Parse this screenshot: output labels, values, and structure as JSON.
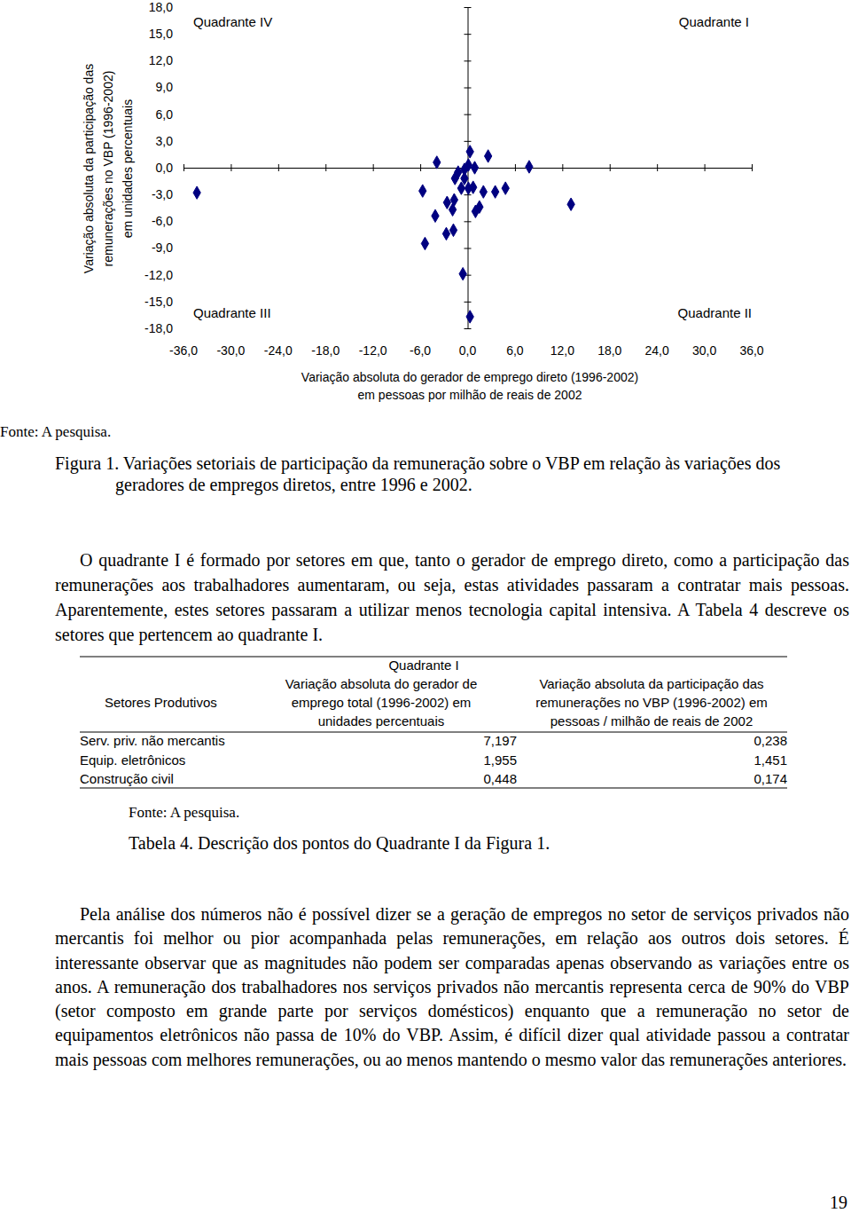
{
  "chart_data": {
    "type": "scatter",
    "x_label": [
      "Variação absoluta do gerador de emprego direto (1996-2002)",
      "em pessoas por milhão de reais de 2002"
    ],
    "y_label": [
      "Variação absoluta da participação das",
      "remunerações no VBP (1996-2002)",
      "em unidades percentuais"
    ],
    "annotations": [
      "Quadrante IV",
      "Quadrante I",
      "Quadrante III",
      "Quadrante II"
    ],
    "source": "Fonte: A pesquisa.",
    "x": [
      -34.3,
      -3.9,
      0.3,
      2.6,
      7.8,
      13.1,
      -5.7,
      -1.2,
      -0.4,
      0.1,
      0.9,
      -1.6,
      -0.8,
      0.1,
      0.7,
      2.0,
      3.5,
      4.8,
      -2.6,
      -1.7,
      -1.9,
      1.0,
      1.5,
      -4.1,
      -2.7,
      -1.8,
      -5.4,
      -0.6,
      0.3,
      -0.4
    ],
    "values": [
      -2.8,
      0.6,
      1.8,
      1.3,
      0.1,
      -4.1,
      -2.6,
      -0.5,
      -0.2,
      0.3,
      0.0,
      -1.2,
      -2.3,
      -2.3,
      -2.2,
      -2.7,
      -2.7,
      -2.3,
      -3.9,
      -3.6,
      -4.7,
      -4.9,
      -4.4,
      -5.4,
      -7.4,
      -7.0,
      -8.5,
      -11.9,
      -16.7,
      -1.2
    ],
    "color": "#000080",
    "marker": "diamond",
    "xlim": [
      -36,
      36
    ],
    "ylim": [
      -18,
      18
    ],
    "xticks": [
      {
        "value": -36,
        "label": "-36,0"
      },
      {
        "value": -30,
        "label": "-30,0"
      },
      {
        "value": -24,
        "label": "-24,0"
      },
      {
        "value": -18,
        "label": "-18,0"
      },
      {
        "value": -12,
        "label": "-12,0"
      },
      {
        "value": -6,
        "label": "-6,0"
      },
      {
        "value": 0,
        "label": "0,0"
      },
      {
        "value": 6,
        "label": "6,0"
      },
      {
        "value": 12,
        "label": "12,0"
      },
      {
        "value": 18,
        "label": "18,0"
      },
      {
        "value": 24,
        "label": "24,0"
      },
      {
        "value": 30,
        "label": "30,0"
      },
      {
        "value": 36,
        "label": "36,0"
      }
    ],
    "yticks": [
      {
        "value": 18,
        "label": "18,0"
      },
      {
        "value": 15,
        "label": "15,0"
      },
      {
        "value": 12,
        "label": "12,0"
      },
      {
        "value": 9,
        "label": "9,0"
      },
      {
        "value": 6,
        "label": "6,0"
      },
      {
        "value": 3,
        "label": "3,0"
      },
      {
        "value": 0,
        "label": "0,0"
      },
      {
        "value": -3,
        "label": "-3,0"
      },
      {
        "value": -6,
        "label": "-6,0"
      },
      {
        "value": -9,
        "label": "-9,0"
      },
      {
        "value": -12,
        "label": "-12,0"
      },
      {
        "value": -15,
        "label": "-15,0"
      },
      {
        "value": -18,
        "label": "-18,0"
      }
    ]
  },
  "caption": "Figura 1. Variações setoriais de participação da remuneração sobre o VBP em relação às variações dos geradores de empregos diretos, entre 1996 e 2002.",
  "paragraph1": "O quadrante I é formado por setores em que, tanto o gerador de emprego direto, como a participação das remunerações aos trabalhadores aumentaram, ou seja, estas atividades passaram a contratar mais pessoas. Aparentemente, estes setores passaram a utilizar menos tecnologia capital intensiva. A Tabela 4 descreve os setores que pertencem ao quadrante I.",
  "table": {
    "title": "Quadrante I",
    "columns": [
      [
        "Setores Produtivos"
      ],
      [
        "Variação absoluta do gerador de",
        "emprego total (1996-2002) em",
        "unidades percentuais"
      ],
      [
        "Variação absoluta da participação das",
        "remunerações no VBP (1996-2002) em",
        "pessoas / milhão de reais de 2002"
      ]
    ],
    "rows": [
      [
        "Serv. priv. não mercantis",
        "7,197",
        "0,238"
      ],
      [
        "Equip. eletrônicos",
        "1,955",
        "1,451"
      ],
      [
        "Construção civil",
        "0,448",
        "0,174"
      ]
    ],
    "source": "Fonte: A pesquisa.",
    "caption": "Tabela 4. Descrição dos pontos do Quadrante I da Figura 1."
  },
  "paragraph2": "Pela análise dos números não é possível dizer se a geração de empregos no setor de serviços privados não mercantis foi melhor ou pior acompanhada pelas remunerações, em relação aos outros dois setores. É interessante observar que as magnitudes não podem ser comparadas apenas observando as variações entre os anos. A remuneração dos trabalhadores nos serviços privados não mercantis representa cerca de 90% do VBP (setor composto em grande parte por serviços domésticos) enquanto que a remuneração no setor de equipamentos eletrônicos não passa de 10% do VBP. Assim, é difícil dizer qual atividade passou a contratar mais pessoas com melhores remunerações, ou ao menos mantendo o mesmo valor das remunerações anteriores.",
  "page_number": "19"
}
